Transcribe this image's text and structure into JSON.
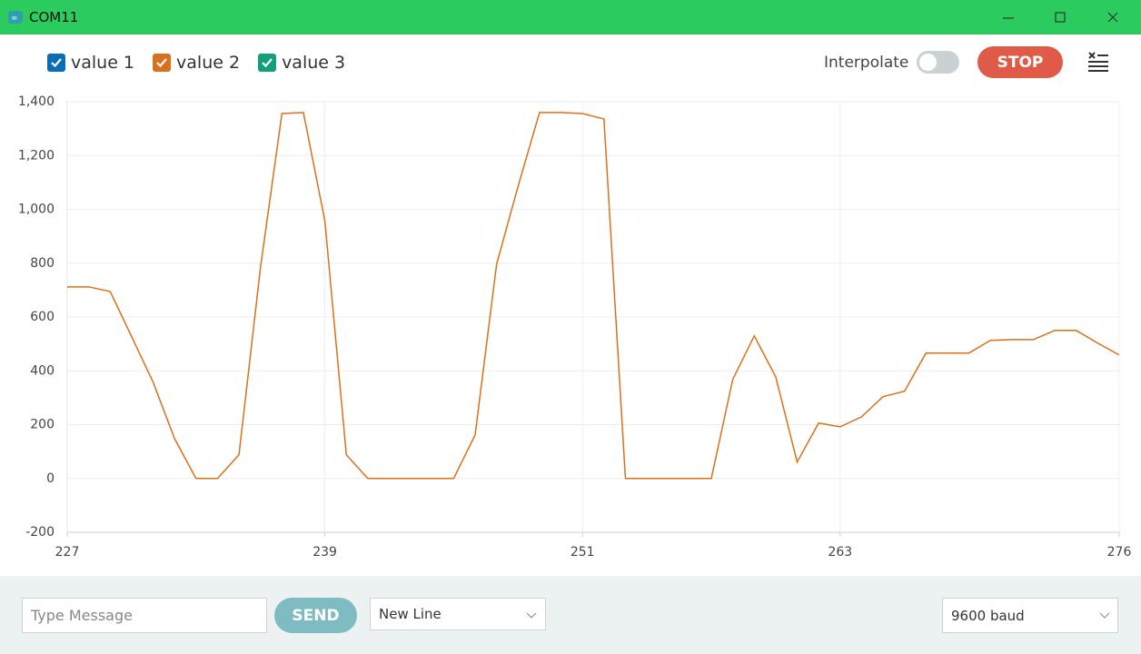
{
  "window": {
    "title": "COM11"
  },
  "toolbar": {
    "interpolate": "Interpolate",
    "stop": "STOP"
  },
  "chart_data": {
    "type": "line",
    "x": [
      227,
      228,
      229,
      230,
      231,
      232,
      233,
      234,
      235,
      236,
      237,
      238,
      239,
      240,
      241,
      242,
      243,
      244,
      245,
      246,
      247,
      248,
      249,
      250,
      251,
      252,
      253,
      254,
      255,
      256,
      257,
      258,
      259,
      260,
      261,
      262,
      263,
      264,
      265,
      266,
      267,
      268,
      269,
      270,
      271,
      272,
      273,
      274,
      275,
      276
    ],
    "series": [
      {
        "name": "value 1",
        "color": "#0b6db5",
        "values": [
          null,
          null,
          null,
          null,
          null,
          null,
          null,
          null,
          null,
          null,
          null,
          null,
          null,
          null,
          null,
          null,
          null,
          null,
          null,
          null,
          null,
          null,
          null,
          null,
          null,
          null,
          null,
          null,
          null,
          null,
          null,
          null,
          null,
          null,
          null,
          null,
          null,
          null,
          null,
          null,
          null,
          null,
          null,
          null,
          null,
          null,
          null,
          null,
          null,
          null
        ]
      },
      {
        "name": "value 2",
        "color": "#d9711c",
        "values": [
          712,
          712,
          695,
          527,
          358,
          148,
          0,
          0,
          88,
          783,
          1356,
          1360,
          958,
          88,
          0,
          0,
          0,
          0,
          0,
          162,
          796,
          1086,
          1360,
          1360,
          1356,
          1336,
          0,
          0,
          0,
          0,
          0,
          368,
          530,
          378,
          61,
          206,
          192,
          229,
          304,
          324,
          466,
          466,
          466,
          513,
          516,
          516,
          550,
          550,
          503,
          459
        ]
      },
      {
        "name": "value 3",
        "color": "#12a07a",
        "values": [
          null,
          null,
          null,
          null,
          null,
          null,
          null,
          null,
          null,
          null,
          null,
          null,
          null,
          null,
          null,
          null,
          null,
          null,
          null,
          null,
          null,
          null,
          null,
          null,
          null,
          null,
          null,
          null,
          null,
          null,
          null,
          null,
          null,
          null,
          null,
          null,
          null,
          null,
          null,
          null,
          null,
          null,
          null,
          null,
          null,
          null,
          null,
          null,
          null,
          null
        ]
      }
    ],
    "xlim": [
      227,
      276
    ],
    "xticks": [
      227,
      239,
      251,
      263,
      276
    ],
    "ylim": [
      -200,
      1400
    ],
    "yticks": [
      -200,
      0,
      200,
      400,
      600,
      800,
      {
        "value": 1000,
        "label": "1,000"
      },
      {
        "value": 1200,
        "label": "1,200"
      },
      {
        "value": 1400,
        "label": "1,400"
      }
    ],
    "grid": true
  },
  "footer": {
    "message": "Type Message",
    "send": "SEND",
    "line_ending": "New Line",
    "baud": "9600 baud"
  }
}
